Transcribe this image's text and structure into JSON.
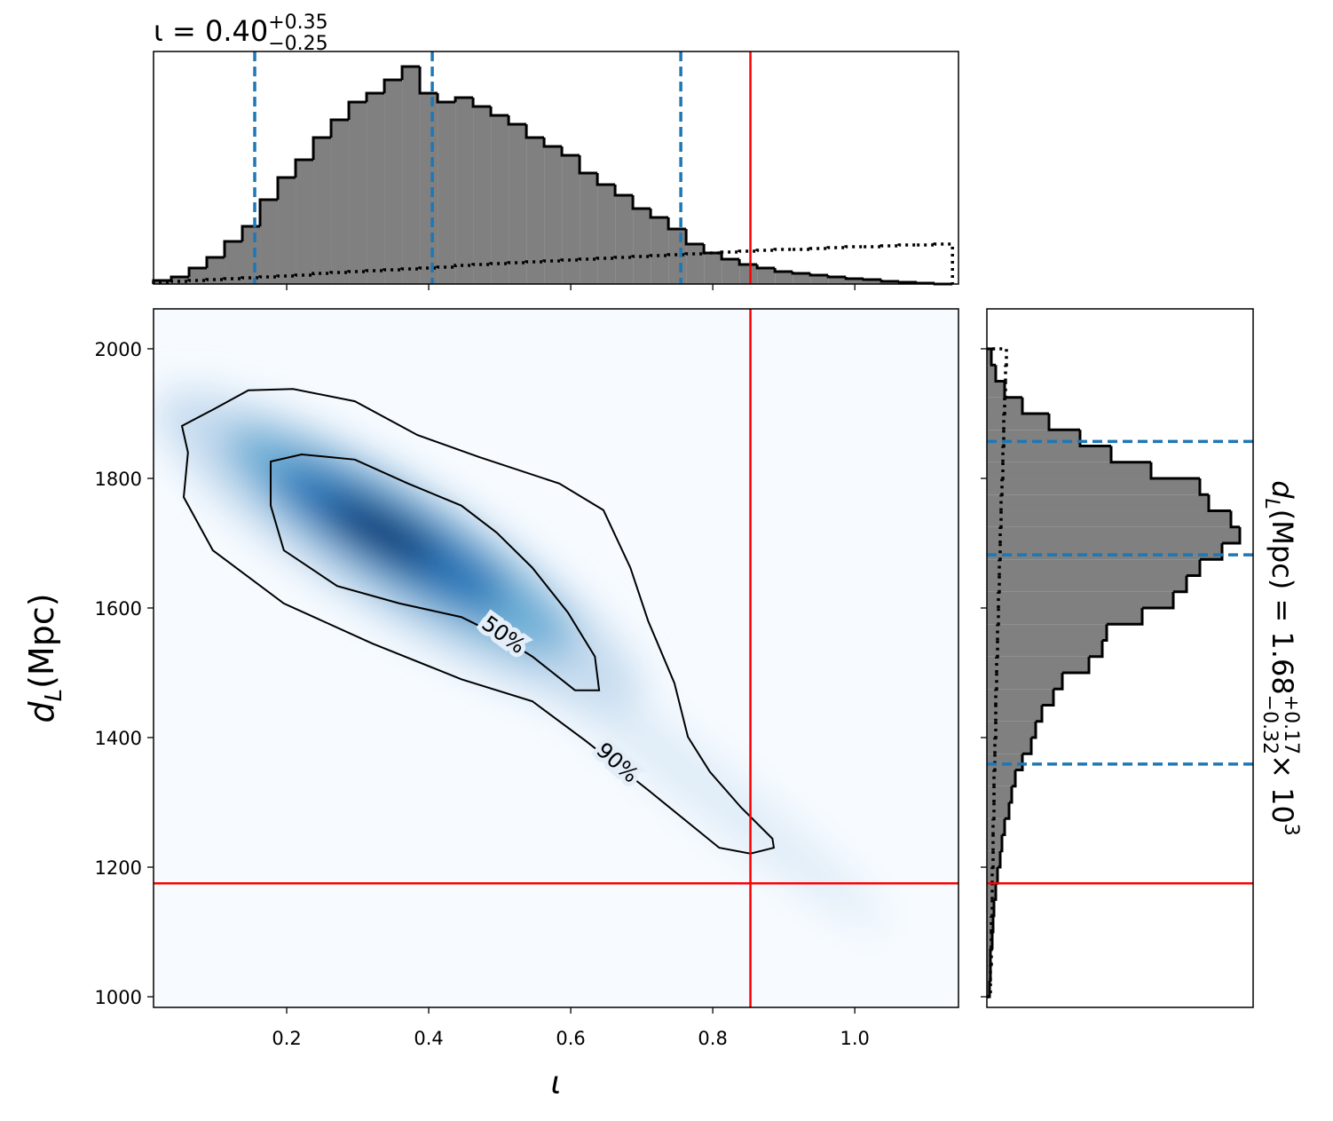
{
  "chart_data": [
    {
      "type": "histogram",
      "orientation": "vertical",
      "title": {
        "base": "ι = 0.40",
        "sup": "+0.35",
        "sub": "−0.25"
      },
      "bins": [
        0.0125,
        0.0375,
        0.0625,
        0.0875,
        0.1125,
        0.1375,
        0.1625,
        0.1875,
        0.2125,
        0.2375,
        0.2625,
        0.2875,
        0.3125,
        0.3375,
        0.3625,
        0.3875,
        0.4125,
        0.4375,
        0.4625,
        0.4875,
        0.5125,
        0.5375,
        0.5625,
        0.5875,
        0.6125,
        0.6375,
        0.6625,
        0.6875,
        0.7125,
        0.7375,
        0.7625,
        0.7875,
        0.8125,
        0.8375,
        0.8625,
        0.8875,
        0.9125,
        0.9375,
        0.9625,
        0.9875,
        1.0125,
        1.0375,
        1.0625,
        1.0875,
        1.1125,
        1.1375
      ],
      "values": [
        4,
        8,
        18,
        30,
        48,
        65,
        95,
        120,
        140,
        165,
        185,
        205,
        215,
        230,
        245,
        215,
        205,
        210,
        200,
        190,
        180,
        165,
        155,
        145,
        125,
        112,
        100,
        85,
        75,
        62,
        45,
        35,
        28,
        22,
        18,
        14,
        12,
        10,
        8,
        6,
        5,
        3,
        2,
        1,
        0
      ],
      "prior": [
        2,
        3,
        4,
        5,
        6,
        7,
        8,
        9,
        10,
        12,
        13,
        14,
        15,
        16,
        17,
        18,
        19,
        21,
        22,
        23,
        24,
        25,
        26,
        27,
        28,
        29,
        30,
        31,
        32,
        33,
        34,
        35,
        36,
        37,
        38,
        39,
        39,
        40,
        41,
        42,
        42,
        43,
        44,
        44,
        45
      ],
      "color": "#808080",
      "edgecolor": "#000000",
      "quantile_color": "#1f77b4",
      "truth_color": "#ff0000",
      "xlim": [
        0.0125,
        1.146
      ],
      "ylim": [
        0,
        262
      ],
      "xticks": [
        0.2,
        0.4,
        0.6,
        0.8,
        1.0
      ],
      "quantiles": [
        0.155,
        0.405,
        0.755
      ],
      "truth": 0.853
    },
    {
      "type": "contour",
      "xlabel": "ι",
      "ylabel": {
        "symbol": "d",
        "subscript": "L",
        "unit": " (Mpc)"
      },
      "xlim": [
        0.0125,
        1.146
      ],
      "ylim": [
        983.6,
        2061.6
      ],
      "xticks": [
        0.2,
        0.4,
        0.6,
        0.8,
        {
          "value": 1,
          "label": "1.0"
        }
      ],
      "yticks": [
        1000,
        1200,
        1400,
        1600,
        1800,
        2000
      ],
      "truth": {
        "x": 0.853,
        "y": 1175
      },
      "truth_color": "#ff0000",
      "colormap": "Blues",
      "contours": [
        {
          "label": "50%",
          "x": [
            0.1775,
            0.221,
            0.296,
            0.371,
            0.446,
            0.496,
            0.546,
            0.596,
            0.634,
            0.64,
            0.606,
            0.546,
            0.496,
            0.446,
            0.359,
            0.271,
            0.196,
            0.1775
          ],
          "y": [
            1826,
            1837,
            1829,
            1792,
            1758,
            1716,
            1662,
            1593,
            1525,
            1473,
            1473,
            1525,
            1559,
            1586,
            1607,
            1634,
            1689,
            1758
          ]
        },
        {
          "label": "90%",
          "x": [
            0.0525,
            0.096,
            0.146,
            0.209,
            0.296,
            0.384,
            0.471,
            0.584,
            0.646,
            0.684,
            0.709,
            0.746,
            0.765,
            0.796,
            0.84,
            0.884,
            0.886,
            0.853,
            0.809,
            0.709,
            0.621,
            0.546,
            0.446,
            0.321,
            0.196,
            0.096,
            0.055,
            0.061
          ],
          "y": [
            1881,
            1906,
            1936,
            1938,
            1919,
            1867,
            1833,
            1792,
            1751,
            1662,
            1580,
            1484,
            1401,
            1347,
            1292,
            1244,
            1230,
            1221,
            1230,
            1319,
            1395,
            1456,
            1490,
            1545,
            1607,
            1689,
            1771,
            1840
          ]
        }
      ]
    },
    {
      "type": "histogram",
      "orientation": "horizontal",
      "label": {
        "symbol": "d",
        "subscript": "L",
        "text": " (Mpc) = 1.68",
        "sup": "+0.17",
        "sub": "−0.32",
        "times": " × 10",
        "exponent": "3"
      },
      "bins": [
        1000,
        1025,
        1050,
        1075,
        1100,
        1125,
        1150,
        1175,
        1200,
        1225,
        1250,
        1275,
        1300,
        1325,
        1350,
        1375,
        1400,
        1425,
        1450,
        1475,
        1500,
        1525,
        1550,
        1575,
        1600,
        1625,
        1650,
        1675,
        1700,
        1725,
        1750,
        1775,
        1800,
        1825,
        1850,
        1875,
        1900,
        1925,
        1950,
        1975,
        2000
      ],
      "values": [
        3,
        4,
        4,
        6,
        7,
        8,
        10,
        12,
        15,
        17,
        20,
        25,
        28,
        32,
        40,
        50,
        55,
        62,
        75,
        85,
        115,
        130,
        135,
        175,
        210,
        225,
        240,
        265,
        285,
        275,
        250,
        240,
        185,
        140,
        105,
        70,
        40,
        20,
        10,
        5
      ],
      "prior": [
        4,
        4,
        5,
        5,
        5,
        6,
        6,
        6,
        7,
        7,
        7,
        8,
        8,
        8,
        9,
        9,
        10,
        10,
        10,
        11,
        11,
        12,
        12,
        13,
        13,
        14,
        14,
        15,
        15,
        16,
        16,
        17,
        18,
        18,
        19,
        19,
        20,
        21,
        21,
        22
      ],
      "color": "#808080",
      "edgecolor": "#000000",
      "quantile_color": "#1f77b4",
      "truth_color": "#ff0000",
      "xlim": [
        0,
        300
      ],
      "ylim": [
        983.6,
        2061.6
      ],
      "yticks": [
        1000,
        1200,
        1400,
        1600,
        1800,
        2000
      ],
      "quantiles": [
        1359,
        1682,
        1857
      ],
      "truth": 1175
    }
  ]
}
